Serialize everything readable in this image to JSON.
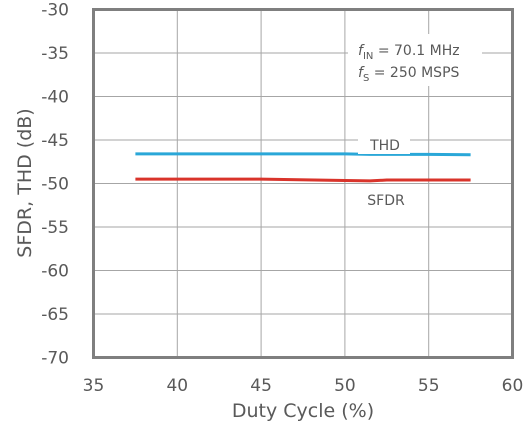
{
  "chart_data": {
    "type": "line",
    "xlabel": "Duty Cycle (%)",
    "ylabel": "SFDR, THD (dB)",
    "xlim": [
      35,
      60
    ],
    "ylim": [
      -70,
      -30
    ],
    "xticks": [
      35,
      40,
      45,
      50,
      55,
      60
    ],
    "yticks": [
      -30,
      -35,
      -40,
      -45,
      -50,
      -55,
      -60,
      -65,
      -70
    ],
    "grid": true,
    "series": [
      {
        "name": "THD",
        "color": "#2aa7d8",
        "x": [
          37.5,
          40,
          45,
          50,
          51.5,
          55,
          57.5
        ],
        "y": [
          -46.6,
          -46.6,
          -46.6,
          -46.6,
          -46.65,
          -46.65,
          -46.7
        ]
      },
      {
        "name": "SFDR",
        "color": "#d9342b",
        "x": [
          37.5,
          40,
          45,
          50,
          51.5,
          52.5,
          55,
          57.5
        ],
        "y": [
          -49.5,
          -49.5,
          -49.5,
          -49.65,
          -49.7,
          -49.6,
          -49.6,
          -49.6
        ]
      }
    ],
    "annotations": [
      {
        "main": "f",
        "sub": "IN",
        "rest": " = 70.1 MHz"
      },
      {
        "main": "f",
        "sub": "S",
        "rest": " = 250 MSPS"
      }
    ]
  }
}
